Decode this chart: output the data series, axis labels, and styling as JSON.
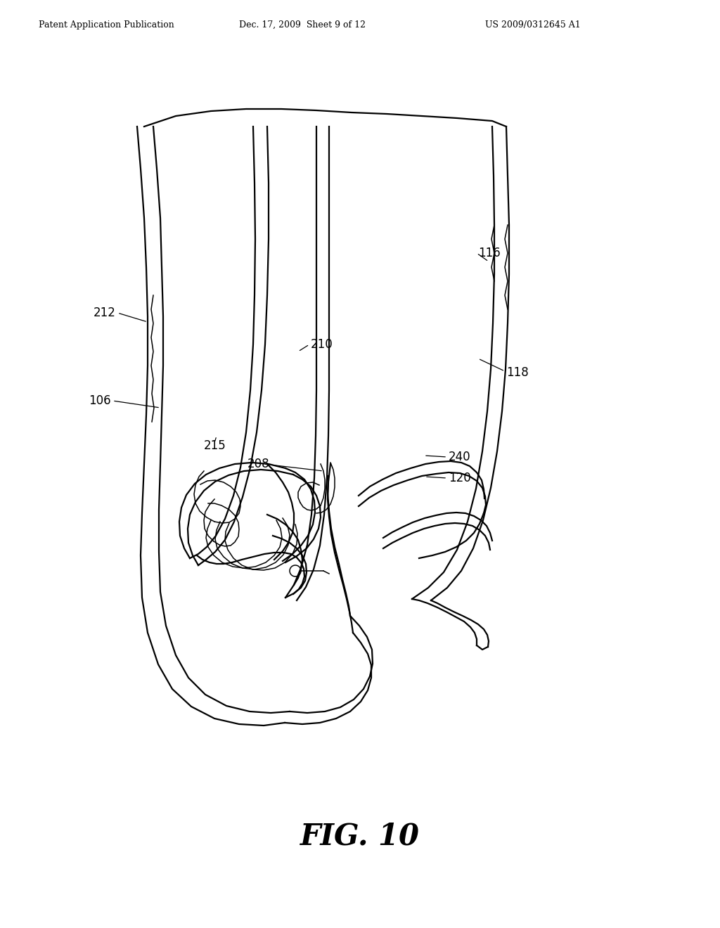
{
  "title": "FIG. 10",
  "header_left": "Patent Application Publication",
  "header_center": "Dec. 17, 2009  Sheet 9 of 12",
  "header_right": "US 2009/0312645 A1",
  "background_color": "#ffffff",
  "line_color": "#000000",
  "lw_main": 1.6,
  "lw_thin": 1.1
}
